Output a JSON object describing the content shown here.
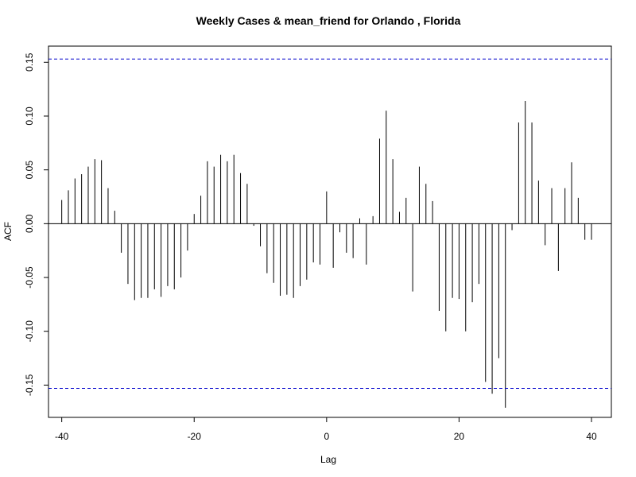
{
  "chart_data": {
    "type": "bar",
    "title": "Weekly Cases & mean_friend for Orlando , Florida",
    "xlabel": "Lag",
    "ylabel": "ACF",
    "xlim": [
      -42,
      43
    ],
    "ylim": [
      -0.18,
      0.165
    ],
    "x_ticks": [
      -40,
      -20,
      0,
      20,
      40
    ],
    "x_tick_labels": [
      "-40",
      "-20",
      "0",
      "20",
      "40"
    ],
    "y_ticks": [
      -0.15,
      -0.1,
      -0.05,
      0.0,
      0.05,
      0.1,
      0.15
    ],
    "y_tick_labels": [
      "-0.15",
      "-0.10",
      "-0.05",
      "0.00",
      "0.05",
      "0.10",
      "0.15"
    ],
    "confidence_bound": 0.153,
    "bound_color": "#0000cc",
    "grid": false,
    "x": [
      -40,
      -39,
      -38,
      -37,
      -36,
      -35,
      -34,
      -33,
      -32,
      -31,
      -30,
      -29,
      -28,
      -27,
      -26,
      -25,
      -24,
      -23,
      -22,
      -21,
      -20,
      -19,
      -18,
      -17,
      -16,
      -15,
      -14,
      -13,
      -12,
      -11,
      -10,
      -9,
      -8,
      -7,
      -6,
      -5,
      -4,
      -3,
      -2,
      -1,
      0,
      1,
      2,
      3,
      4,
      5,
      6,
      7,
      8,
      9,
      10,
      11,
      12,
      13,
      14,
      15,
      16,
      17,
      18,
      19,
      20,
      21,
      22,
      23,
      24,
      25,
      26,
      27,
      28,
      29,
      30,
      31,
      32,
      33,
      34,
      35,
      36,
      37,
      38,
      39,
      40
    ],
    "values": [
      0.022,
      0.031,
      0.042,
      0.046,
      0.053,
      0.06,
      0.059,
      0.033,
      0.012,
      -0.027,
      -0.056,
      -0.071,
      -0.069,
      -0.069,
      -0.061,
      -0.068,
      -0.058,
      -0.061,
      -0.05,
      -0.025,
      0.009,
      0.026,
      0.058,
      0.053,
      0.064,
      0.058,
      0.064,
      0.047,
      0.037,
      -0.002,
      -0.021,
      -0.046,
      -0.055,
      -0.067,
      -0.066,
      -0.069,
      -0.058,
      -0.052,
      -0.036,
      -0.038,
      0.03,
      -0.041,
      -0.008,
      -0.027,
      -0.032,
      0.005,
      -0.038,
      0.007,
      0.079,
      0.105,
      0.06,
      0.011,
      0.024,
      -0.063,
      0.053,
      0.037,
      0.021,
      -0.081,
      -0.1,
      -0.069,
      -0.07,
      -0.1,
      -0.073,
      -0.056,
      -0.147,
      -0.158,
      -0.125,
      -0.171,
      -0.006,
      0.094,
      0.114,
      0.094,
      0.04,
      -0.02,
      0.033,
      -0.044,
      0.033,
      0.057,
      0.024,
      -0.015,
      -0.015
    ]
  }
}
